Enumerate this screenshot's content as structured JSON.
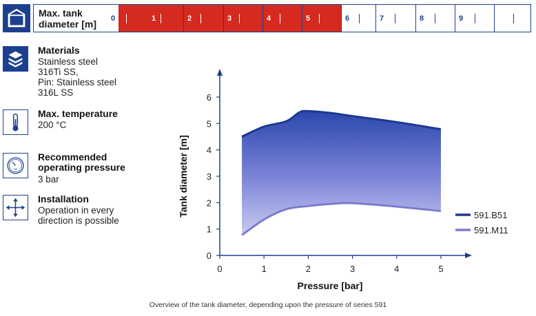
{
  "header": {
    "title": "Max. tank\ndiameter [m]",
    "scale_values": [
      "0",
      "1",
      "2",
      "3",
      "4",
      "5",
      "6",
      "7",
      "8",
      "9"
    ],
    "highlight_max": 5,
    "highlight_color": "#d42a1f"
  },
  "specs": [
    {
      "icon": "materials-layers-icon",
      "title": "Materials",
      "text": "Stainless steel\n316Ti SS,\nPin: Stainless steel\n316L SS"
    },
    {
      "icon": "thermometer-icon",
      "title": "Max. temperature",
      "text": "200 °C"
    },
    {
      "icon": "pressure-gauge-icon",
      "title": "Recommended\noperating pressure",
      "text": "3 bar"
    },
    {
      "icon": "arrows-all-directions-icon",
      "title": "Installation",
      "text": "Operation in every\ndirection is possible"
    }
  ],
  "chart_data": {
    "type": "area",
    "xlabel": "Pressure [bar]",
    "ylabel": "Tank diameter [m]",
    "xlim": [
      0,
      5
    ],
    "ylim": [
      0,
      6
    ],
    "xticks": [
      "0",
      "1",
      "2",
      "3",
      "4",
      "5"
    ],
    "yticks": [
      "0",
      "1",
      "2",
      "3",
      "4",
      "5",
      "6"
    ],
    "grid": false,
    "legend_position": "right",
    "series": [
      {
        "name": "591.B51",
        "color": "#1d3a8f",
        "x": [
          0.5,
          1.0,
          1.5,
          1.8,
          2.0,
          2.5,
          3.0,
          4.0,
          5.0
        ],
        "y": [
          4.5,
          4.88,
          5.08,
          5.42,
          5.47,
          5.4,
          5.28,
          5.05,
          4.78
        ]
      },
      {
        "name": "591.M11",
        "color": "#7c7ccc",
        "x": [
          0.5,
          1.0,
          1.5,
          2.0,
          2.5,
          3.0,
          4.0,
          5.0
        ],
        "y": [
          0.77,
          1.36,
          1.75,
          1.87,
          1.95,
          1.98,
          1.85,
          1.68
        ]
      }
    ]
  },
  "caption": "Overview of the tank diameter, depending upon the pressure of series 591"
}
